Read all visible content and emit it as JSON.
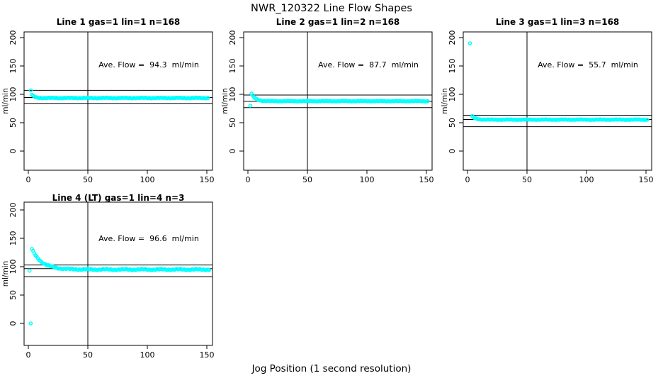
{
  "chart_data": {
    "type": "scatter",
    "main_title": "NWR_120322  Line Flow Shapes",
    "x_axis_label": "Jog Position (1 second resolution)",
    "y_axis_label": "ml/min",
    "xticks": [
      0,
      50,
      100,
      150
    ],
    "yticks": [
      0,
      50,
      100,
      150,
      200
    ],
    "xlim": [
      0,
      155
    ],
    "ylim": [
      0,
      205
    ],
    "grid": false,
    "marker": "open-circle",
    "point_color": "#00ffff",
    "line_color": "#000000",
    "panels": [
      {
        "title": "Line 1 gas=1 lin=1 n=168",
        "annotation": "Ave. Flow =  94.3  ml/min",
        "ave_flow": 94.3,
        "n": 168,
        "gas": 1,
        "lin": 1,
        "hline_upper": 107,
        "hline_mean": 94.3,
        "hline_lower": 84,
        "vline": 50,
        "lead_points": [
          [
            2,
            107
          ]
        ],
        "band": {
          "x_start": 3,
          "x_end": 151,
          "start_value": 99,
          "settle_value": 93.5,
          "decay": 0.45,
          "noise": 0.8
        }
      },
      {
        "title": "Line 2 gas=1 lin=2 n=168",
        "annotation": "Ave. Flow =  87.7  ml/min",
        "ave_flow": 87.7,
        "n": 168,
        "gas": 1,
        "lin": 2,
        "hline_upper": 98.7,
        "hline_mean": 87.7,
        "hline_lower": 76.6,
        "vline": 50,
        "lead_points": [
          [
            2,
            80
          ]
        ],
        "band": {
          "x_start": 3,
          "x_end": 151,
          "start_value": 101,
          "settle_value": 88,
          "decay": 0.3,
          "noise": 0.7
        }
      },
      {
        "title": "Line 3 gas=1 lin=3 n=168",
        "annotation": "Ave. Flow =  55.7  ml/min",
        "ave_flow": 55.7,
        "n": 168,
        "gas": 1,
        "lin": 3,
        "hline_upper": 63,
        "hline_mean": 55.7,
        "hline_lower": 43,
        "vline": 50,
        "lead_points": [
          [
            2,
            190
          ]
        ],
        "band": {
          "x_start": 4,
          "x_end": 151,
          "start_value": 61,
          "settle_value": 55.4,
          "decay": 0.35,
          "noise": 0.6
        }
      },
      {
        "title": "Line 4 (LT) gas=1 lin=4 n=3",
        "annotation": "Ave. Flow =  96.6  ml/min",
        "ave_flow": 96.6,
        "n": 3,
        "gas": 1,
        "lin": 4,
        "hline_upper": 103,
        "hline_mean": 96.6,
        "hline_lower": 82.5,
        "vline": 50,
        "lead_points": [
          [
            1,
            93
          ],
          [
            2,
            0
          ]
        ],
        "band": {
          "x_start": 3,
          "x_end": 152,
          "start_value": 131,
          "settle_value": 95,
          "decay": 0.12,
          "noise": 1.3
        }
      }
    ]
  }
}
